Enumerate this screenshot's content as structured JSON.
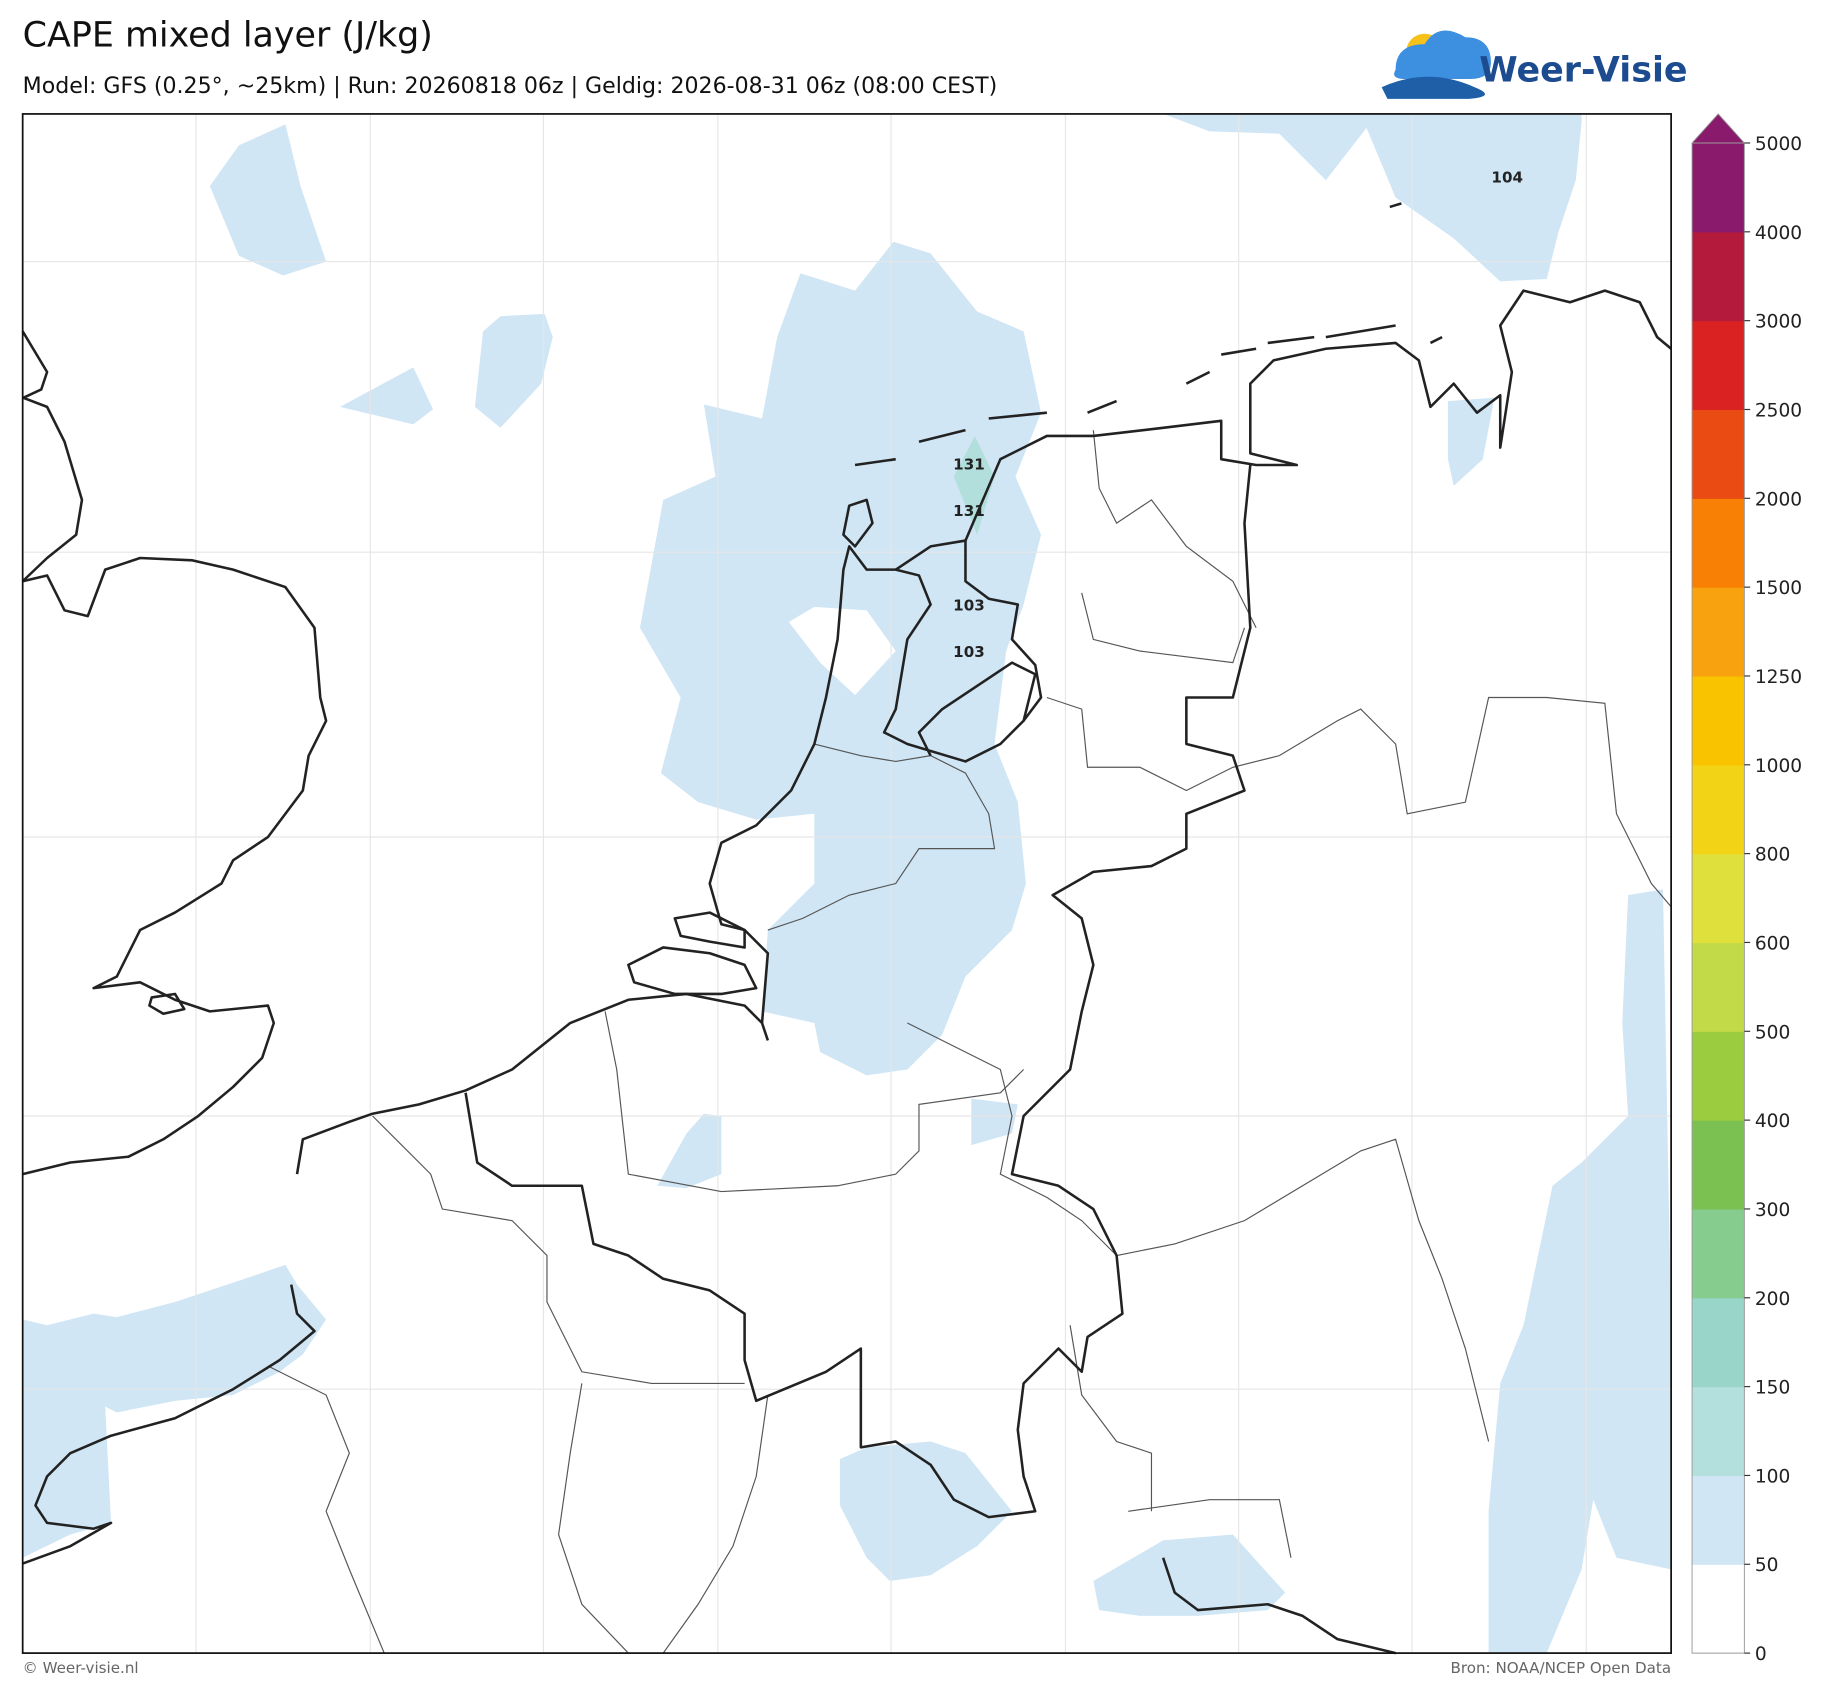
{
  "header": {
    "title": "CAPE mixed layer (J/kg)",
    "subtitle": "Model: GFS (0.25°, ~25km)  |  Run: 20260818 06z  |  Geldig: 2026-08-31 06z (08:00 CEST)",
    "logo": "Weer-Visie"
  },
  "map": {
    "labels": [
      "131",
      "131",
      "103",
      "103",
      "104"
    ]
  },
  "colorbar": {
    "ticks": [
      0,
      50,
      100,
      150,
      200,
      300,
      400,
      500,
      600,
      800,
      1000,
      1250,
      1500,
      2000,
      2500,
      3000,
      4000,
      5000
    ],
    "colors": [
      "#ffffff",
      "#d0e6f5",
      "#b3e0dc",
      "#99d5c9",
      "#86cc8e",
      "#7bc152",
      "#9bcb3f",
      "#c2da47",
      "#dfe03c",
      "#f2d316",
      "#f9c300",
      "#f9a20f",
      "#f88004",
      "#e94b12",
      "#db2222",
      "#b31a3c",
      "#8a1a6b"
    ],
    "extend_color": "#8a1a6b"
  },
  "footer": {
    "left": "© Weer-visie.nl",
    "right": "Bron: NOAA/NCEP Open Data"
  }
}
